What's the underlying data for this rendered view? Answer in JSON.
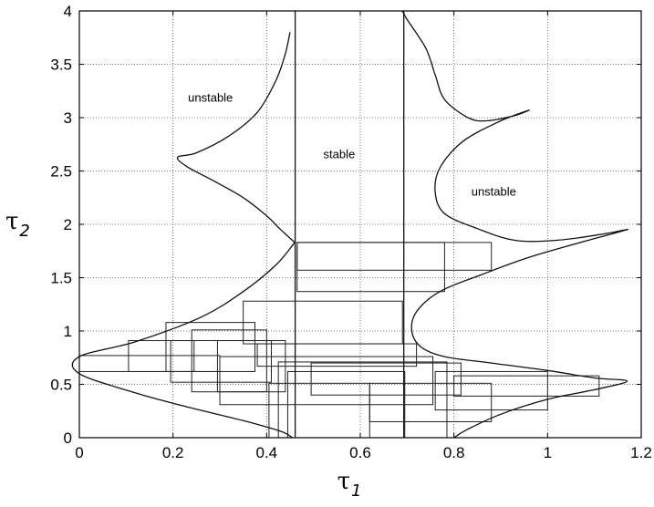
{
  "chart_data": {
    "type": "line",
    "xlabel": "τ",
    "xlabel_subscript": "1",
    "ylabel": "τ",
    "ylabel_subscript": "2",
    "xlim": [
      0,
      1.2
    ],
    "ylim": [
      0,
      4
    ],
    "x_ticks": [
      "0",
      "0.2",
      "0.4",
      "0.6",
      "0.8",
      "1",
      "1.2"
    ],
    "y_ticks": [
      "0",
      "0.5",
      "1",
      "1.5",
      "2",
      "2.5",
      "3",
      "3.5",
      "4"
    ],
    "grid": true,
    "grid_style": "dotted",
    "region_labels": [
      {
        "text": "unstable",
        "x": 0.28,
        "y": 3.15
      },
      {
        "text": "stable",
        "x": 0.555,
        "y": 2.62
      },
      {
        "text": "unstable",
        "x": 0.885,
        "y": 2.27
      }
    ],
    "series": [
      {
        "values": [
          [
            0.46,
            1.83
          ],
          [
            0.43,
            1.95
          ],
          [
            0.4,
            2.08
          ],
          [
            0.35,
            2.25
          ],
          [
            0.29,
            2.4
          ],
          [
            0.23,
            2.54
          ],
          [
            0.21,
            2.63
          ],
          [
            0.25,
            2.67
          ],
          [
            0.32,
            2.83
          ],
          [
            0.38,
            3.05
          ],
          [
            0.42,
            3.35
          ],
          [
            0.44,
            3.6
          ],
          [
            0.45,
            3.8
          ]
        ]
      },
      {
        "values": [
          [
            0.46,
            1.83
          ],
          [
            0.42,
            1.62
          ],
          [
            0.35,
            1.37
          ],
          [
            0.26,
            1.13
          ],
          [
            0.12,
            0.9
          ],
          [
            0.0,
            0.76
          ],
          [
            0.0,
            0.6
          ],
          [
            0.12,
            0.42
          ],
          [
            0.22,
            0.3
          ],
          [
            0.35,
            0.16
          ],
          [
            0.43,
            0.06
          ],
          [
            0.455,
            0.0
          ]
        ]
      },
      {
        "values": [
          [
            0.69,
            4.0
          ],
          [
            0.7,
            3.92
          ],
          [
            0.74,
            3.65
          ],
          [
            0.76,
            3.4
          ],
          [
            0.78,
            3.17
          ],
          [
            0.83,
            3.0
          ],
          [
            0.87,
            2.97
          ],
          [
            0.93,
            3.02
          ],
          [
            0.96,
            3.07
          ],
          [
            0.9,
            2.97
          ],
          [
            0.82,
            2.78
          ],
          [
            0.77,
            2.53
          ],
          [
            0.76,
            2.3
          ],
          [
            0.78,
            2.1
          ],
          [
            0.85,
            1.96
          ],
          [
            0.93,
            1.85
          ],
          [
            1.02,
            1.85
          ],
          [
            1.12,
            1.91
          ],
          [
            1.17,
            1.95
          ],
          [
            1.07,
            1.83
          ],
          [
            0.96,
            1.69
          ],
          [
            0.86,
            1.53
          ],
          [
            0.77,
            1.37
          ],
          [
            0.72,
            1.18
          ],
          [
            0.71,
            1.0
          ],
          [
            0.73,
            0.85
          ],
          [
            0.78,
            0.76
          ],
          [
            0.88,
            0.7
          ],
          [
            1.0,
            0.63
          ],
          [
            1.1,
            0.56
          ],
          [
            1.17,
            0.53
          ],
          [
            1.1,
            0.45
          ],
          [
            1.0,
            0.36
          ],
          [
            0.9,
            0.22
          ],
          [
            0.83,
            0.08
          ],
          [
            0.8,
            0.0
          ]
        ]
      },
      {
        "values": [
          [
            0.461,
            0.0
          ],
          [
            0.461,
            4.0
          ]
        ]
      },
      {
        "values": [
          [
            0.693,
            0.0
          ],
          [
            0.693,
            4.0
          ]
        ]
      }
    ],
    "rectangles": [
      [
        0.465,
        1.37,
        0.78,
        1.83
      ],
      [
        0.465,
        1.57,
        0.88,
        1.83
      ],
      [
        0.35,
        0.88,
        0.69,
        1.28
      ],
      [
        0.185,
        0.62,
        0.375,
        1.08
      ],
      [
        0.24,
        0.43,
        0.4,
        1.01
      ],
      [
        0.195,
        0.52,
        0.41,
        0.91
      ],
      [
        0.105,
        0.62,
        0.245,
        0.91
      ],
      [
        0.0,
        0.62,
        0.3,
        0.77
      ],
      [
        0.295,
        0.43,
        0.44,
        0.91
      ],
      [
        0.38,
        0.67,
        0.72,
        0.88
      ],
      [
        0.3,
        0.31,
        0.755,
        0.76
      ],
      [
        0.425,
        0.0,
        0.785,
        0.71
      ],
      [
        0.445,
        0.0,
        0.695,
        0.62
      ],
      [
        0.495,
        0.4,
        0.815,
        0.7
      ],
      [
        0.62,
        0.15,
        0.88,
        0.51
      ],
      [
        0.405,
        0.0,
        0.62,
        0.51
      ],
      [
        0.76,
        0.26,
        1.0,
        0.62
      ],
      [
        0.8,
        0.39,
        1.11,
        0.58
      ]
    ]
  }
}
